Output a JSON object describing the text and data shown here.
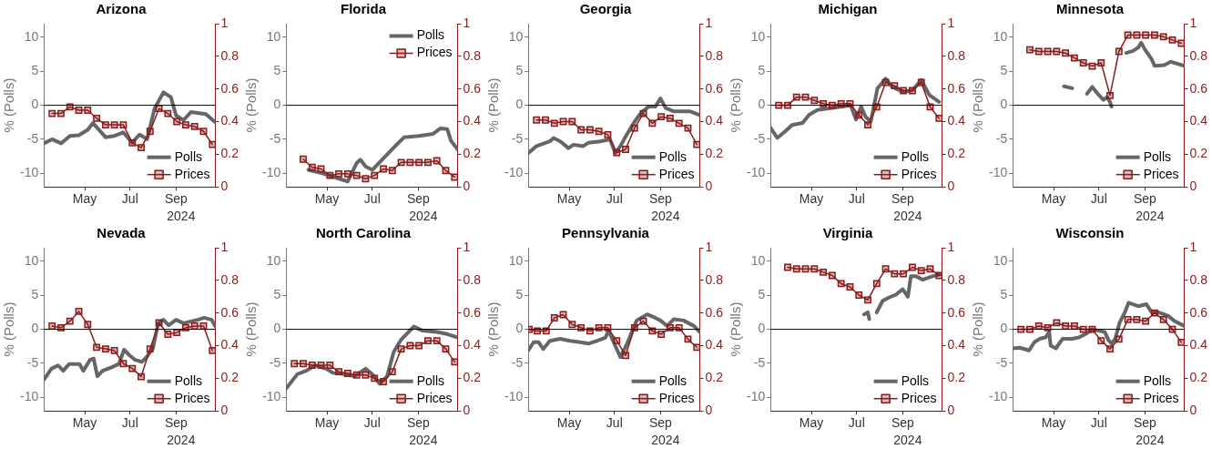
{
  "chart_data": [
    {
      "type": "line",
      "title": "Arizona",
      "xlabel": "2024",
      "ylabel": "% (Polls)",
      "xlim": [
        "2024-03-07",
        "2024-10-24"
      ],
      "xticks": [
        {
          "value": "2024-05-01",
          "label": "May"
        },
        {
          "value": "2024-07-01",
          "label": "Jul"
        },
        {
          "value": "2024-09-01",
          "label": "Sep"
        }
      ],
      "ylim": [
        -12,
        12
      ],
      "yticks": [
        -10,
        -5,
        0,
        5,
        10
      ],
      "y2lim": [
        0,
        1
      ],
      "y2ticks": [
        0,
        0.2,
        0.4,
        0.6,
        0.8,
        1
      ],
      "ref_lines": [
        {
          "axis": "y",
          "value": 0,
          "color": "#000000"
        }
      ],
      "legend": "bottom right",
      "series": [
        {
          "name": "Polls",
          "color": "#666666",
          "marker": "none",
          "x": [
            "2024-03-07",
            "2024-03-18",
            "2024-03-30",
            "2024-04-11",
            "2024-04-23",
            "2024-05-05",
            "2024-05-12",
            "2024-05-29",
            "2024-06-10",
            "2024-06-22",
            "2024-07-04",
            "2024-07-14",
            "2024-07-24",
            "2024-08-03",
            "2024-08-15",
            "2024-08-25",
            "2024-09-01",
            "2024-09-11",
            "2024-09-21",
            "2024-10-11",
            "2024-10-24"
          ],
          "values": [
            -5.6,
            -5.0,
            -5.6,
            -4.5,
            -4.4,
            -3.6,
            -2.6,
            -4.7,
            -4.5,
            -4.0,
            -5.5,
            -4.3,
            -5.0,
            -0.5,
            1.9,
            1.2,
            -1.5,
            -2.2,
            -1.0,
            -1.3,
            -2.5
          ]
        },
        {
          "name": "Prices",
          "color": "#8b1a1a",
          "marker": "square",
          "axis": "y2",
          "x": [
            "2024-03-18",
            "2024-03-30",
            "2024-04-11",
            "2024-04-23",
            "2024-05-05",
            "2024-05-17",
            "2024-05-29",
            "2024-06-10",
            "2024-06-22",
            "2024-07-04",
            "2024-07-16",
            "2024-07-28",
            "2024-08-09",
            "2024-08-21",
            "2024-09-02",
            "2024-09-14",
            "2024-09-26",
            "2024-10-08",
            "2024-10-20"
          ],
          "values": [
            0.45,
            0.45,
            0.49,
            0.47,
            0.47,
            0.42,
            0.38,
            0.38,
            0.38,
            0.27,
            0.24,
            0.34,
            0.48,
            0.45,
            0.4,
            0.38,
            0.37,
            0.34,
            0.26
          ]
        }
      ]
    },
    {
      "type": "line",
      "title": "Florida",
      "xlabel": "2024",
      "ylabel": "% (Polls)",
      "xlim": [
        "2024-03-07",
        "2024-10-24"
      ],
      "xticks": [
        {
          "value": "2024-05-01",
          "label": "May"
        },
        {
          "value": "2024-07-01",
          "label": "Jul"
        },
        {
          "value": "2024-09-01",
          "label": "Sep"
        }
      ],
      "ylim": [
        -12,
        12
      ],
      "yticks": [
        -10,
        -5,
        0,
        5,
        10
      ],
      "y2lim": [
        0,
        1
      ],
      "y2ticks": [
        0,
        0.2,
        0.4,
        0.6,
        0.8,
        1
      ],
      "ref_lines": [
        {
          "axis": "y",
          "value": 0,
          "color": "#000000"
        }
      ],
      "legend": "top right",
      "series": [
        {
          "name": "Polls",
          "color": "#666666",
          "marker": "none",
          "x": [
            "2024-04-06",
            "2024-04-25",
            "2024-05-09",
            "2024-05-29",
            "2024-06-10",
            "2024-06-15",
            "2024-06-22",
            "2024-07-01",
            "2024-08-01",
            "2024-08-13",
            "2024-09-02",
            "2024-09-21",
            "2024-10-01",
            "2024-10-10",
            "2024-10-15",
            "2024-10-24"
          ],
          "values": [
            -9.5,
            -10.0,
            -10.5,
            -11.2,
            -8.5,
            -8.0,
            -9.0,
            -9.5,
            -6.0,
            -4.7,
            -4.5,
            -4.2,
            -3.4,
            -3.5,
            -5.2,
            -6.5
          ]
        },
        {
          "name": "Prices",
          "color": "#8b1a1a",
          "marker": "square",
          "axis": "y2",
          "x": [
            "2024-03-30",
            "2024-04-11",
            "2024-04-23",
            "2024-05-05",
            "2024-05-17",
            "2024-05-29",
            "2024-06-10",
            "2024-06-22",
            "2024-07-04",
            "2024-07-16",
            "2024-07-28",
            "2024-08-09",
            "2024-08-21",
            "2024-09-02",
            "2024-09-14",
            "2024-09-26",
            "2024-10-08",
            "2024-10-20"
          ],
          "values": [
            0.17,
            0.12,
            0.11,
            0.07,
            0.08,
            0.08,
            0.07,
            0.05,
            0.07,
            0.11,
            0.1,
            0.15,
            0.15,
            0.15,
            0.15,
            0.16,
            0.1,
            0.06
          ]
        }
      ]
    },
    {
      "type": "line",
      "title": "Georgia",
      "xlabel": "2024",
      "ylabel": "% (Polls)",
      "xlim": [
        "2024-03-07",
        "2024-10-24"
      ],
      "xticks": [
        {
          "value": "2024-05-01",
          "label": "May"
        },
        {
          "value": "2024-07-01",
          "label": "Jul"
        },
        {
          "value": "2024-09-01",
          "label": "Sep"
        }
      ],
      "ylim": [
        -12,
        12
      ],
      "yticks": [
        -10,
        -5,
        0,
        5,
        10
      ],
      "y2lim": [
        0,
        1
      ],
      "y2ticks": [
        0,
        0.2,
        0.4,
        0.6,
        0.8,
        1
      ],
      "ref_lines": [
        {
          "axis": "y",
          "value": 0,
          "color": "#000000"
        }
      ],
      "legend": "bottom right",
      "series": [
        {
          "name": "Polls",
          "color": "#666666",
          "marker": "none",
          "x": [
            "2024-03-07",
            "2024-03-18",
            "2024-04-05",
            "2024-04-10",
            "2024-04-19",
            "2024-04-30",
            "2024-05-07",
            "2024-05-20",
            "2024-05-27",
            "2024-06-12",
            "2024-06-25",
            "2024-07-02",
            "2024-07-09",
            "2024-07-16",
            "2024-07-27",
            "2024-08-05",
            "2024-08-16",
            "2024-08-25",
            "2024-09-01",
            "2024-09-08",
            "2024-09-19",
            "2024-10-11",
            "2024-10-23"
          ],
          "values": [
            -7.0,
            -6.0,
            -5.3,
            -4.8,
            -5.3,
            -6.3,
            -5.8,
            -6.0,
            -5.5,
            -5.3,
            -5.0,
            -7.0,
            -6.0,
            -4.6,
            -2.6,
            -1.2,
            -0.2,
            -0.2,
            1.0,
            -0.4,
            -0.9,
            -0.9,
            -1.4
          ]
        },
        {
          "name": "Prices",
          "color": "#8b1a1a",
          "marker": "square",
          "axis": "y2",
          "x": [
            "2024-03-18",
            "2024-03-30",
            "2024-04-11",
            "2024-04-23",
            "2024-05-05",
            "2024-05-17",
            "2024-05-29",
            "2024-06-10",
            "2024-06-22",
            "2024-07-04",
            "2024-07-16",
            "2024-07-28",
            "2024-08-09",
            "2024-08-21",
            "2024-09-02",
            "2024-09-14",
            "2024-09-26",
            "2024-10-08",
            "2024-10-20"
          ],
          "values": [
            0.41,
            0.41,
            0.39,
            0.4,
            0.4,
            0.35,
            0.35,
            0.34,
            0.32,
            0.21,
            0.23,
            0.36,
            0.45,
            0.39,
            0.43,
            0.42,
            0.39,
            0.36,
            0.26
          ]
        }
      ]
    },
    {
      "type": "line",
      "title": "Michigan",
      "xlabel": "2024",
      "ylabel": "% (Polls)",
      "xlim": [
        "2024-03-07",
        "2024-10-24"
      ],
      "xticks": [
        {
          "value": "2024-05-01",
          "label": "May"
        },
        {
          "value": "2024-07-01",
          "label": "Jul"
        },
        {
          "value": "2024-09-01",
          "label": "Sep"
        }
      ],
      "ylim": [
        -12,
        12
      ],
      "yticks": [
        -10,
        -5,
        0,
        5,
        10
      ],
      "y2lim": [
        0,
        1
      ],
      "y2ticks": [
        0,
        0.2,
        0.4,
        0.6,
        0.8,
        1
      ],
      "ref_lines": [
        {
          "axis": "y",
          "value": 0,
          "color": "#000000"
        }
      ],
      "legend": "bottom right",
      "series": [
        {
          "name": "Polls",
          "color": "#666666",
          "marker": "none",
          "x": [
            "2024-03-07",
            "2024-03-16",
            "2024-03-27",
            "2024-04-05",
            "2024-04-19",
            "2024-04-28",
            "2024-05-09",
            "2024-05-29",
            "2024-06-12",
            "2024-06-23",
            "2024-06-30",
            "2024-07-07",
            "2024-07-13",
            "2024-07-20",
            "2024-07-29",
            "2024-08-09",
            "2024-08-18",
            "2024-09-01",
            "2024-09-14",
            "2024-09-26",
            "2024-10-07",
            "2024-10-20"
          ],
          "values": [
            -3.3,
            -4.8,
            -3.8,
            -2.9,
            -2.6,
            -1.4,
            -0.7,
            -0.4,
            -0.2,
            0.0,
            -2.1,
            -0.2,
            -1.7,
            -2.4,
            2.5,
            3.9,
            2.7,
            2.0,
            2.2,
            3.7,
            1.5,
            0.5
          ]
        },
        {
          "name": "Prices",
          "color": "#8b1a1a",
          "marker": "square",
          "axis": "y2",
          "x": [
            "2024-03-18",
            "2024-03-30",
            "2024-04-11",
            "2024-04-23",
            "2024-05-05",
            "2024-05-17",
            "2024-05-29",
            "2024-06-10",
            "2024-06-22",
            "2024-07-04",
            "2024-07-16",
            "2024-07-28",
            "2024-08-09",
            "2024-08-21",
            "2024-09-02",
            "2024-09-14",
            "2024-09-26",
            "2024-10-08",
            "2024-10-20"
          ],
          "values": [
            0.5,
            0.5,
            0.55,
            0.55,
            0.53,
            0.51,
            0.5,
            0.51,
            0.51,
            0.44,
            0.38,
            0.49,
            0.64,
            0.62,
            0.59,
            0.59,
            0.64,
            0.49,
            0.42
          ]
        }
      ]
    },
    {
      "type": "line",
      "title": "Minnesota",
      "xlabel": "2024",
      "ylabel": "% (Polls)",
      "xlim": [
        "2024-03-07",
        "2024-10-24"
      ],
      "xticks": [
        {
          "value": "2024-05-01",
          "label": "May"
        },
        {
          "value": "2024-07-01",
          "label": "Jul"
        },
        {
          "value": "2024-09-01",
          "label": "Sep"
        }
      ],
      "ylim": [
        -12,
        12
      ],
      "yticks": [
        -10,
        -5,
        0,
        5,
        10
      ],
      "y2lim": [
        0,
        1
      ],
      "y2ticks": [
        0,
        0.2,
        0.4,
        0.6,
        0.8,
        1
      ],
      "ref_lines": [
        {
          "axis": "y",
          "value": 0,
          "color": "#000000"
        }
      ],
      "legend": "bottom right",
      "series": [
        {
          "name": "Polls",
          "color": "#666666",
          "marker": "none",
          "x": [
            "2024-05-15",
            "2024-05-26",
            "2024-06-05",
            "2024-06-15",
            "2024-06-22",
            "2024-07-01",
            "2024-07-07",
            "2024-07-12",
            "2024-07-16",
            "2024-07-18",
            "2024-07-28",
            "2024-08-07",
            "2024-08-16",
            "2024-08-23",
            "2024-08-27",
            "2024-09-01",
            "2024-09-10",
            "2024-09-14",
            "2024-09-27",
            "2024-10-06",
            "2024-10-24"
          ],
          "values": [
            2.8,
            2.5,
            null,
            1.7,
            2.7,
            1.5,
            0.8,
            1.2,
            0.5,
            -0.2,
            null,
            7.7,
            8.0,
            8.5,
            9.2,
            8.2,
            6.8,
            5.8,
            5.9,
            6.4,
            5.8
          ]
        },
        {
          "name": "Prices",
          "color": "#8b1a1a",
          "marker": "square",
          "axis": "y2",
          "x": [
            "2024-03-30",
            "2024-04-11",
            "2024-04-23",
            "2024-05-05",
            "2024-05-17",
            "2024-05-29",
            "2024-06-10",
            "2024-06-22",
            "2024-07-04",
            "2024-07-16",
            "2024-07-28",
            "2024-08-09",
            "2024-08-21",
            "2024-09-02",
            "2024-09-14",
            "2024-09-26",
            "2024-10-08",
            "2024-10-20"
          ],
          "values": [
            0.84,
            0.83,
            0.83,
            0.83,
            0.82,
            0.79,
            0.76,
            0.74,
            0.76,
            0.56,
            0.83,
            0.93,
            0.93,
            0.93,
            0.93,
            0.92,
            0.9,
            0.88
          ]
        }
      ]
    },
    {
      "type": "line",
      "title": "Nevada",
      "xlabel": "2024",
      "ylabel": "% (Polls)",
      "xlim": [
        "2024-03-07",
        "2024-10-24"
      ],
      "xticks": [
        {
          "value": "2024-05-01",
          "label": "May"
        },
        {
          "value": "2024-07-01",
          "label": "Jul"
        },
        {
          "value": "2024-09-01",
          "label": "Sep"
        }
      ],
      "ylim": [
        -12,
        12
      ],
      "yticks": [
        -10,
        -5,
        0,
        5,
        10
      ],
      "y2lim": [
        0,
        1
      ],
      "y2ticks": [
        0,
        0.2,
        0.4,
        0.6,
        0.8,
        1
      ],
      "ref_lines": [
        {
          "axis": "y",
          "value": 0,
          "color": "#000000"
        }
      ],
      "legend": "bottom right",
      "series": [
        {
          "name": "Polls",
          "color": "#666666",
          "marker": "none",
          "x": [
            "2024-03-07",
            "2024-03-17",
            "2024-03-26",
            "2024-04-02",
            "2024-04-10",
            "2024-04-24",
            "2024-04-29",
            "2024-05-08",
            "2024-05-13",
            "2024-05-18",
            "2024-05-25",
            "2024-06-06",
            "2024-06-16",
            "2024-06-23",
            "2024-06-30",
            "2024-07-08",
            "2024-07-17",
            "2024-07-24",
            "2024-08-01",
            "2024-08-08",
            "2024-08-15",
            "2024-08-22",
            "2024-09-01",
            "2024-09-11",
            "2024-09-30",
            "2024-10-09",
            "2024-10-19",
            "2024-10-24"
          ],
          "values": [
            -7.4,
            -5.8,
            -5.3,
            -6.1,
            -5.1,
            -5.1,
            -6.1,
            -4.5,
            -4.3,
            -6.9,
            -6.1,
            -5.6,
            -5.1,
            -3.0,
            -3.8,
            -4.5,
            -4.8,
            -4.0,
            -2.7,
            0.9,
            1.4,
            0.6,
            1.4,
            0.9,
            1.4,
            1.7,
            1.4,
            0.4
          ]
        },
        {
          "name": "Prices",
          "color": "#8b1a1a",
          "marker": "square",
          "axis": "y2",
          "x": [
            "2024-03-18",
            "2024-03-30",
            "2024-04-11",
            "2024-04-23",
            "2024-05-05",
            "2024-05-17",
            "2024-05-29",
            "2024-06-10",
            "2024-06-22",
            "2024-07-04",
            "2024-07-16",
            "2024-07-28",
            "2024-08-09",
            "2024-08-21",
            "2024-09-02",
            "2024-09-14",
            "2024-09-26",
            "2024-10-08",
            "2024-10-20"
          ],
          "values": [
            0.52,
            0.51,
            0.55,
            0.61,
            0.53,
            0.39,
            0.38,
            0.37,
            0.29,
            0.26,
            0.21,
            0.38,
            0.54,
            0.47,
            0.48,
            0.51,
            0.52,
            0.52,
            0.37
          ]
        }
      ]
    },
    {
      "type": "line",
      "title": "North Carolina",
      "xlabel": "2024",
      "ylabel": "% (Polls)",
      "xlim": [
        "2024-03-07",
        "2024-10-24"
      ],
      "xticks": [
        {
          "value": "2024-05-01",
          "label": "May"
        },
        {
          "value": "2024-07-01",
          "label": "Jul"
        },
        {
          "value": "2024-09-01",
          "label": "Sep"
        }
      ],
      "ylim": [
        -12,
        12
      ],
      "yticks": [
        -10,
        -5,
        0,
        5,
        10
      ],
      "y2lim": [
        0,
        1
      ],
      "y2ticks": [
        0,
        0.2,
        0.4,
        0.6,
        0.8,
        1
      ],
      "ref_lines": [
        {
          "axis": "y",
          "value": 0,
          "color": "#000000"
        }
      ],
      "legend": "bottom right",
      "series": [
        {
          "name": "Polls",
          "color": "#666666",
          "marker": "none",
          "x": [
            "2024-03-07",
            "2024-03-15",
            "2024-03-22",
            "2024-04-03",
            "2024-04-15",
            "2024-04-30",
            "2024-05-09",
            "2024-05-24",
            "2024-06-07",
            "2024-06-22",
            "2024-07-01",
            "2024-07-11",
            "2024-07-21",
            "2024-07-30",
            "2024-08-09",
            "2024-08-26",
            "2024-09-07",
            "2024-09-26",
            "2024-10-10",
            "2024-10-24"
          ],
          "values": [
            -8.7,
            -7.6,
            -6.6,
            -6.1,
            -5.3,
            -5.8,
            -6.4,
            -6.6,
            -6.9,
            -5.8,
            -6.6,
            -8.0,
            -6.9,
            -3.3,
            -1.5,
            0.4,
            -0.2,
            -0.4,
            -0.7,
            -1.2
          ]
        },
        {
          "name": "Prices",
          "color": "#8b1a1a",
          "marker": "square",
          "axis": "y2",
          "x": [
            "2024-03-18",
            "2024-03-30",
            "2024-04-11",
            "2024-04-23",
            "2024-05-05",
            "2024-05-17",
            "2024-05-29",
            "2024-06-10",
            "2024-06-22",
            "2024-07-04",
            "2024-07-16",
            "2024-07-28",
            "2024-08-09",
            "2024-08-21",
            "2024-09-02",
            "2024-09-14",
            "2024-09-26",
            "2024-10-08",
            "2024-10-20"
          ],
          "values": [
            0.29,
            0.29,
            0.28,
            0.28,
            0.28,
            0.24,
            0.23,
            0.22,
            0.22,
            0.2,
            0.18,
            0.24,
            0.38,
            0.4,
            0.4,
            0.43,
            0.43,
            0.38,
            0.3
          ]
        }
      ]
    },
    {
      "type": "line",
      "title": "Pennsylvania",
      "xlabel": "2024",
      "ylabel": "% (Polls)",
      "xlim": [
        "2024-03-07",
        "2024-10-24"
      ],
      "xticks": [
        {
          "value": "2024-05-01",
          "label": "May"
        },
        {
          "value": "2024-07-01",
          "label": "Jul"
        },
        {
          "value": "2024-09-01",
          "label": "Sep"
        }
      ],
      "ylim": [
        -12,
        12
      ],
      "yticks": [
        -10,
        -5,
        0,
        5,
        10
      ],
      "y2lim": [
        0,
        1
      ],
      "y2ticks": [
        0,
        0.2,
        0.4,
        0.6,
        0.8,
        1
      ],
      "ref_lines": [
        {
          "axis": "y",
          "value": 0,
          "color": "#000000"
        }
      ],
      "legend": "bottom right",
      "series": [
        {
          "name": "Polls",
          "color": "#666666",
          "marker": "none",
          "x": [
            "2024-03-07",
            "2024-03-14",
            "2024-03-21",
            "2024-03-27",
            "2024-04-05",
            "2024-04-19",
            "2024-05-02",
            "2024-05-16",
            "2024-05-27",
            "2024-06-07",
            "2024-06-19",
            "2024-06-23",
            "2024-06-30",
            "2024-07-09",
            "2024-07-18",
            "2024-07-31",
            "2024-08-14",
            "2024-08-25",
            "2024-09-01",
            "2024-09-10",
            "2024-09-19",
            "2024-10-02",
            "2024-10-16",
            "2024-10-24"
          ],
          "values": [
            -3.1,
            -1.9,
            -1.9,
            -2.9,
            -1.7,
            -1.4,
            -1.7,
            -1.9,
            -2.1,
            -1.7,
            -1.2,
            -0.2,
            -1.9,
            -4.1,
            -2.1,
            1.3,
            2.2,
            1.7,
            1.3,
            0.5,
            1.5,
            1.3,
            0.5,
            -0.4
          ]
        },
        {
          "name": "Prices",
          "color": "#8b1a1a",
          "marker": "square",
          "axis": "y2",
          "x": [
            "2024-03-08",
            "2024-03-19",
            "2024-03-31",
            "2024-04-11",
            "2024-04-23",
            "2024-05-05",
            "2024-05-17",
            "2024-05-29",
            "2024-06-10",
            "2024-06-22",
            "2024-07-04",
            "2024-07-16",
            "2024-07-28",
            "2024-08-09",
            "2024-08-21",
            "2024-09-02",
            "2024-09-14",
            "2024-09-26",
            "2024-10-08",
            "2024-10-20"
          ],
          "values": [
            0.5,
            0.49,
            0.49,
            0.57,
            0.59,
            0.53,
            0.51,
            0.49,
            0.51,
            0.51,
            0.43,
            0.34,
            0.51,
            0.55,
            0.49,
            0.47,
            0.51,
            0.51,
            0.44,
            0.39
          ]
        }
      ]
    },
    {
      "type": "line",
      "title": "Virginia",
      "xlabel": "2024",
      "ylabel": "% (Polls)",
      "xlim": [
        "2024-03-07",
        "2024-10-24"
      ],
      "xticks": [
        {
          "value": "2024-05-01",
          "label": "May"
        },
        {
          "value": "2024-07-01",
          "label": "Jul"
        },
        {
          "value": "2024-09-01",
          "label": "Sep"
        }
      ],
      "ylim": [
        -12,
        12
      ],
      "yticks": [
        -10,
        -5,
        0,
        5,
        10
      ],
      "y2lim": [
        0,
        1
      ],
      "y2ticks": [
        0,
        0.2,
        0.4,
        0.6,
        0.8,
        1
      ],
      "ref_lines": [
        {
          "axis": "y",
          "value": 0,
          "color": "#000000"
        }
      ],
      "legend": "bottom right",
      "series": [
        {
          "name": "Polls",
          "color": "#666666",
          "marker": "none",
          "x": [
            "2024-07-11",
            "2024-07-16",
            "2024-07-18",
            "2024-07-23",
            "2024-07-28",
            "2024-08-05",
            "2024-08-14",
            "2024-08-23",
            "2024-09-01",
            "2024-09-08",
            "2024-09-12",
            "2024-09-19",
            "2024-09-28",
            "2024-10-11",
            "2024-10-23"
          ],
          "values": [
            2.2,
            2.5,
            1.5,
            null,
            2.5,
            4.2,
            4.7,
            5.1,
            5.9,
            4.8,
            7.8,
            7.8,
            7.3,
            7.8,
            8.1
          ]
        },
        {
          "name": "Prices",
          "color": "#8b1a1a",
          "marker": "square",
          "axis": "y2",
          "x": [
            "2024-03-30",
            "2024-04-11",
            "2024-04-23",
            "2024-05-05",
            "2024-05-17",
            "2024-05-29",
            "2024-06-10",
            "2024-06-22",
            "2024-07-04",
            "2024-07-16",
            "2024-07-28",
            "2024-08-09",
            "2024-08-21",
            "2024-09-02",
            "2024-09-14",
            "2024-09-26",
            "2024-10-08",
            "2024-10-20"
          ],
          "values": [
            0.88,
            0.87,
            0.87,
            0.87,
            0.85,
            0.83,
            0.78,
            0.76,
            0.71,
            0.68,
            0.78,
            0.87,
            0.84,
            0.84,
            0.88,
            0.86,
            0.87,
            0.83
          ]
        }
      ]
    },
    {
      "type": "line",
      "title": "Wisconsin",
      "xlabel": "2024",
      "ylabel": "% (Polls)",
      "xlim": [
        "2024-03-07",
        "2024-10-24"
      ],
      "xticks": [
        {
          "value": "2024-05-01",
          "label": "May"
        },
        {
          "value": "2024-07-01",
          "label": "Jul"
        },
        {
          "value": "2024-09-01",
          "label": "Sep"
        }
      ],
      "ylim": [
        -12,
        12
      ],
      "yticks": [
        -10,
        -5,
        0,
        5,
        10
      ],
      "y2lim": [
        0,
        1
      ],
      "y2ticks": [
        0,
        0.2,
        0.4,
        0.6,
        0.8,
        1
      ],
      "ref_lines": [
        {
          "axis": "y",
          "value": 0,
          "color": "#000000"
        }
      ],
      "legend": "bottom right",
      "series": [
        {
          "name": "Polls",
          "color": "#666666",
          "marker": "none",
          "x": [
            "2024-03-07",
            "2024-03-16",
            "2024-03-29",
            "2024-04-05",
            "2024-04-12",
            "2024-04-20",
            "2024-04-25",
            "2024-04-27",
            "2024-05-04",
            "2024-05-13",
            "2024-05-26",
            "2024-06-04",
            "2024-06-13",
            "2024-06-22",
            "2024-07-01",
            "2024-07-09",
            "2024-07-14",
            "2024-07-18",
            "2024-07-23",
            "2024-07-29",
            "2024-08-05",
            "2024-08-10",
            "2024-08-23",
            "2024-09-03",
            "2024-09-10",
            "2024-09-19",
            "2024-10-02",
            "2024-10-11",
            "2024-10-24"
          ],
          "values": [
            -2.8,
            -2.7,
            -3.1,
            -1.9,
            -1.4,
            -1.2,
            -0.4,
            -2.4,
            -2.8,
            -1.4,
            -1.4,
            -1.2,
            -0.7,
            0.0,
            -0.2,
            -0.4,
            -1.6,
            -2.1,
            -1.4,
            1.0,
            2.5,
            3.9,
            3.4,
            3.7,
            2.5,
            2.5,
            2.0,
            1.2,
            0.5
          ]
        },
        {
          "name": "Prices",
          "color": "#8b1a1a",
          "marker": "square",
          "axis": "y2",
          "x": [
            "2024-03-18",
            "2024-03-30",
            "2024-04-11",
            "2024-04-23",
            "2024-05-05",
            "2024-05-17",
            "2024-05-29",
            "2024-06-10",
            "2024-06-22",
            "2024-07-04",
            "2024-07-16",
            "2024-07-28",
            "2024-08-09",
            "2024-08-21",
            "2024-09-02",
            "2024-09-14",
            "2024-09-26",
            "2024-10-08",
            "2024-10-20"
          ],
          "values": [
            0.5,
            0.5,
            0.52,
            0.51,
            0.54,
            0.52,
            0.52,
            0.5,
            0.5,
            0.43,
            0.38,
            0.44,
            0.56,
            0.56,
            0.55,
            0.6,
            0.56,
            0.5,
            0.42
          ]
        }
      ]
    }
  ]
}
